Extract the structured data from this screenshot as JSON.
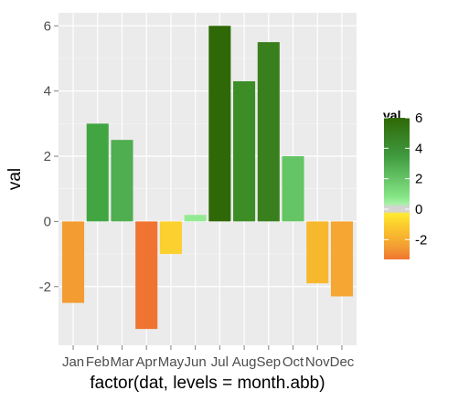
{
  "chart_data": {
    "type": "bar",
    "categories": [
      "Jan",
      "Feb",
      "Mar",
      "Apr",
      "May",
      "Jun",
      "Jul",
      "Aug",
      "Sep",
      "Oct",
      "Nov",
      "Dec"
    ],
    "values": [
      -2.5,
      3.0,
      2.5,
      -3.3,
      -1.0,
      0.2,
      6.0,
      4.3,
      5.5,
      2.0,
      -1.9,
      -2.3
    ],
    "bar_colors": [
      "#f39c32",
      "#41a641",
      "#4fae4f",
      "#ef7432",
      "#fbd02f",
      "#94ea94",
      "#2f6806",
      "#3d8d27",
      "#3a7f1e",
      "#63c563",
      "#f7b82e",
      "#f5a633"
    ],
    "xlabel": "factor(dat, levels = month.abb)",
    "ylabel": "val",
    "ylim": [
      -3.8,
      6.4
    ],
    "yticks": [
      -2,
      0,
      2,
      4,
      6
    ],
    "grid": true,
    "panel_background": "#ebebeb",
    "legend": {
      "title": "val",
      "placement": "right",
      "ticks": [
        6,
        4,
        2,
        0,
        -2
      ],
      "range": [
        -3.3,
        6.0
      ],
      "gradient": [
        {
          "value": 6.0,
          "color": "#2f6806"
        },
        {
          "value": 3.5,
          "color": "#3f9a3f"
        },
        {
          "value": 0.8,
          "color": "#86e686"
        },
        {
          "value": 0.35,
          "color": "#a6f0a6"
        },
        {
          "value": 0.15,
          "color": "#d4d4d4"
        },
        {
          "value": -0.15,
          "color": "#d4d4d4"
        },
        {
          "value": -0.3,
          "color": "#ffe92f"
        },
        {
          "value": -1.2,
          "color": "#fbc72e"
        },
        {
          "value": -2.5,
          "color": "#f39c32"
        },
        {
          "value": -3.3,
          "color": "#ef7432"
        }
      ]
    }
  }
}
